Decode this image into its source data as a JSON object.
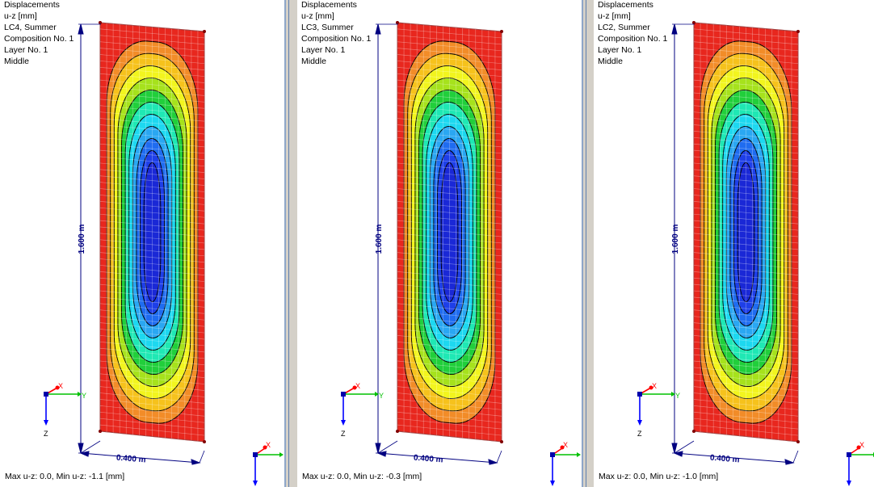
{
  "panels": [
    {
      "lines": [
        "Displacements",
        "u-z [mm]",
        "LC4, Summer",
        "Composition No. 1",
        "Layer No. 1",
        "Middle"
      ],
      "height_dim": "1.600 m",
      "width_dim": "0.400 m",
      "status": "Max u-z: 0.0, Min u-z: -1.1 [mm]"
    },
    {
      "lines": [
        "Displacements",
        "u-z [mm]",
        "LC3, Summer",
        "Composition No. 1",
        "Layer No. 1",
        "Middle"
      ],
      "height_dim": "1.600 m",
      "width_dim": "0.400 m",
      "status": "Max u-z: 0.0, Min u-z: -0.3 [mm]"
    },
    {
      "lines": [
        "Displacements",
        "u-z [mm]",
        "LC2, Summer",
        "Composition No. 1",
        "Layer No. 1",
        "Middle"
      ],
      "height_dim": "1.600 m",
      "width_dim": "0.400 m",
      "status": "Max u-z: 0.0, Min u-z: -1.0 [mm]"
    }
  ],
  "axes": {
    "x": "X",
    "y": "Y",
    "z": "Z"
  },
  "contour_colors": [
    "#e8271e",
    "#f28c28",
    "#f6c21c",
    "#f2f51e",
    "#a6e21c",
    "#21cf3b",
    "#1fe8b4",
    "#1dd8f0",
    "#2aa7f2",
    "#1f6cf0",
    "#1e3fe8",
    "#1a28d6"
  ],
  "colors": {
    "axis_x": "#ff0000",
    "axis_y": "#00c000",
    "axis_z": "#0000ff",
    "dimension": "#000080"
  }
}
